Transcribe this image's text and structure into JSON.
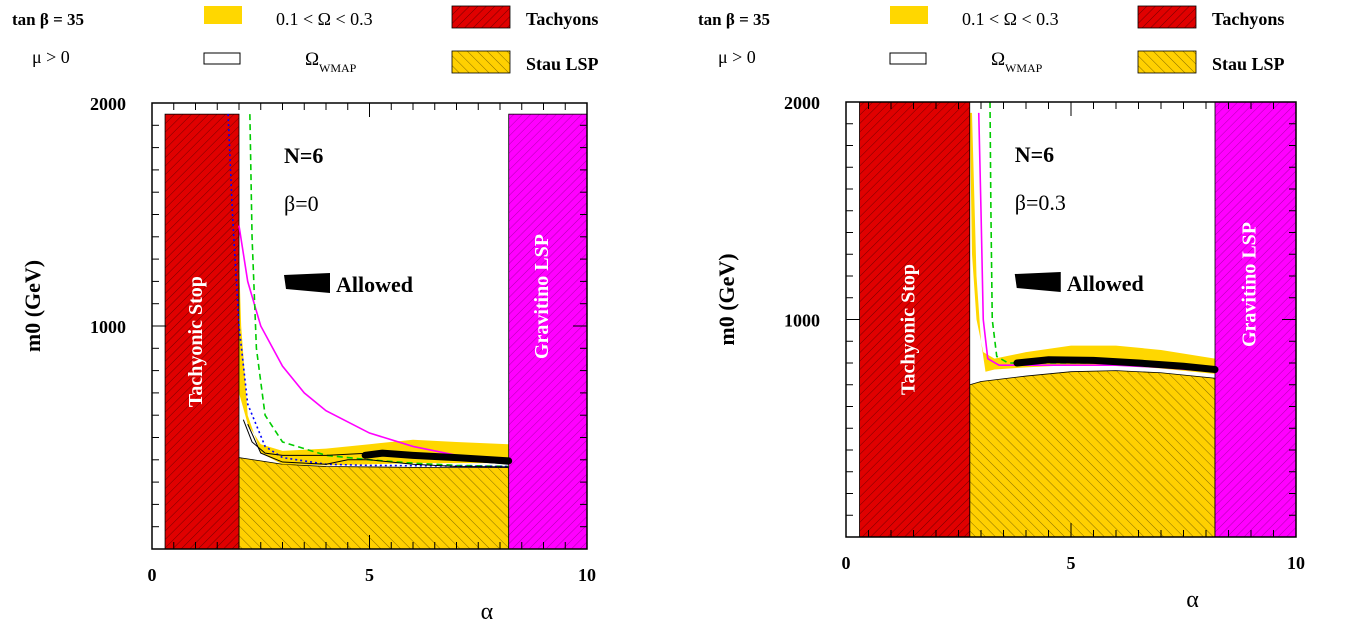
{
  "chart_data": [
    {
      "type": "area",
      "xlabel": "α",
      "ylabel": "m0 (GeV)",
      "xlim": [
        0,
        10
      ],
      "ylim": [
        0,
        2000
      ],
      "xticks": [
        "0",
        "5",
        "10"
      ],
      "yticks": [
        "1000",
        "2000"
      ],
      "legend": {
        "left_col": [
          "tan β = 35",
          "μ > 0"
        ],
        "entries": [
          {
            "label": "0.1 < Ω < 0.3",
            "color": "#FFD700",
            "kind": "fill"
          },
          {
            "label": "Ω",
            "sub": "WMAP",
            "color": "#FFFFFF",
            "kind": "outline"
          },
          {
            "label": "Tachyons",
            "color": "#E00000",
            "kind": "hatch"
          },
          {
            "label": "Stau LSP",
            "color": "#FFD700",
            "kind": "hatch"
          }
        ]
      },
      "annotations": {
        "n": "N=6",
        "beta": "β=0",
        "allowed": "Allowed"
      },
      "regions": {
        "tachyonic": {
          "label": "Tachyonic Stop",
          "x": [
            0.3,
            2.0
          ],
          "y": [
            0,
            1950
          ]
        },
        "gravitino": {
          "label": "Gravitino LSP",
          "x": [
            8.2,
            10
          ],
          "y": [
            0,
            1950
          ]
        },
        "stau": {
          "x_from": 2.0,
          "x_to": 8.2,
          "boundary": [
            [
              2.0,
              410
            ],
            [
              2.5,
              395
            ],
            [
              3,
              380
            ],
            [
              4,
              370
            ],
            [
              5,
              368
            ],
            [
              6,
              366
            ],
            [
              7,
              365
            ],
            [
              8.2,
              365
            ]
          ]
        }
      },
      "series": [
        {
          "color": "#FFD700",
          "role": "band-upper",
          "points": [
            [
              1.8,
              1920
            ],
            [
              1.85,
              1400
            ],
            [
              1.9,
              1000
            ],
            [
              2.0,
              700
            ],
            [
              2.2,
              560
            ],
            [
              2.5,
              470
            ],
            [
              3,
              440
            ],
            [
              4,
              450
            ],
            [
              5,
              470
            ],
            [
              6,
              490
            ],
            [
              7,
              480
            ],
            [
              8.2,
              470
            ]
          ]
        },
        {
          "color": "#FFD700",
          "role": "band-lower",
          "points": [
            [
              1.9,
              1920
            ],
            [
              2.05,
              1000
            ],
            [
              2.2,
              600
            ],
            [
              2.5,
              430
            ],
            [
              3,
              380
            ],
            [
              4,
              375
            ],
            [
              5,
              380
            ],
            [
              6,
              385
            ],
            [
              7,
              385
            ],
            [
              8.2,
              385
            ]
          ]
        },
        {
          "color": "#FF00FF",
          "role": "curve",
          "points": [
            [
              2.0,
              1450
            ],
            [
              2.2,
              1200
            ],
            [
              2.5,
              1000
            ],
            [
              3,
              820
            ],
            [
              3.5,
              700
            ],
            [
              4,
              620
            ],
            [
              5,
              520
            ],
            [
              6,
              460
            ],
            [
              7,
              420
            ],
            [
              8.2,
              390
            ]
          ]
        },
        {
          "color": "#00CC00",
          "role": "dashed",
          "points": [
            [
              2.25,
              1950
            ],
            [
              2.3,
              1400
            ],
            [
              2.4,
              900
            ],
            [
              2.6,
              600
            ],
            [
              3,
              480
            ],
            [
              4,
              420
            ],
            [
              5,
              400
            ],
            [
              6,
              385
            ],
            [
              7,
              375
            ],
            [
              8.2,
              370
            ]
          ]
        },
        {
          "color": "#0000FF",
          "role": "dotted",
          "points": [
            [
              1.75,
              1950
            ],
            [
              1.85,
              1500
            ],
            [
              2.0,
              1000
            ],
            [
              2.2,
              650
            ],
            [
              2.6,
              460
            ],
            [
              3,
              410
            ],
            [
              4,
              380
            ],
            [
              5,
              375
            ],
            [
              8.2,
              370
            ]
          ]
        },
        {
          "color": "#000000",
          "role": "wmap-upper",
          "points": [
            [
              2.1,
              580
            ],
            [
              2.3,
              480
            ],
            [
              2.6,
              430
            ],
            [
              3,
              420
            ],
            [
              4,
              420
            ],
            [
              5,
              430
            ],
            [
              6,
              420
            ],
            [
              7,
              400
            ],
            [
              8.2,
              380
            ]
          ]
        },
        {
          "color": "#000000",
          "role": "wmap-lower",
          "points": [
            [
              2.2,
              560
            ],
            [
              2.5,
              430
            ],
            [
              3,
              390
            ],
            [
              4,
              380
            ],
            [
              4.5,
              400
            ],
            [
              5,
              400
            ],
            [
              6,
              380
            ],
            [
              7,
              370
            ],
            [
              8.2,
              368
            ]
          ]
        },
        {
          "color": "#000000",
          "role": "allowed",
          "points": [
            [
              4.9,
              420
            ],
            [
              5.3,
              430
            ],
            [
              6,
              420
            ],
            [
              7,
              410
            ],
            [
              8.2,
              395
            ]
          ]
        }
      ]
    },
    {
      "type": "area",
      "xlabel": "α",
      "ylabel": "m0 (GeV)",
      "xlim": [
        0,
        10
      ],
      "ylim": [
        0,
        2000
      ],
      "xticks": [
        "0",
        "5",
        "10"
      ],
      "yticks": [
        "1000",
        "2000"
      ],
      "legend": {
        "left_col": [
          "tan β = 35",
          "μ > 0"
        ],
        "entries": [
          {
            "label": "0.1 < Ω < 0.3",
            "color": "#FFD700",
            "kind": "fill"
          },
          {
            "label": "Ω",
            "sub": "WMAP",
            "color": "#FFFFFF",
            "kind": "outline"
          },
          {
            "label": "Tachyons",
            "color": "#E00000",
            "kind": "hatch"
          },
          {
            "label": "Stau LSP",
            "color": "#FFD700",
            "kind": "hatch"
          }
        ]
      },
      "annotations": {
        "n": "N=6",
        "beta": "β=0.3",
        "allowed": "Allowed"
      },
      "regions": {
        "tachyonic": {
          "label": "Tachyonic Stop",
          "x": [
            0.3,
            2.75
          ],
          "y": [
            0,
            2000
          ]
        },
        "gravitino": {
          "label": "Gravitino LSP",
          "x": [
            8.2,
            10
          ],
          "y": [
            0,
            2000
          ]
        },
        "stau": {
          "x_from": 2.75,
          "x_to": 8.2,
          "boundary": [
            [
              2.75,
              700
            ],
            [
              3,
              715
            ],
            [
              4,
              740
            ],
            [
              5,
              760
            ],
            [
              6,
              765
            ],
            [
              7,
              755
            ],
            [
              8.2,
              730
            ]
          ]
        }
      },
      "series": [
        {
          "color": "#FFD700",
          "role": "band-upper",
          "points": [
            [
              2.75,
              1950
            ],
            [
              2.8,
              1300
            ],
            [
              2.9,
              1000
            ],
            [
              3.05,
              850
            ],
            [
              3.3,
              820
            ],
            [
              4,
              850
            ],
            [
              5,
              880
            ],
            [
              6,
              880
            ],
            [
              7,
              860
            ],
            [
              8.2,
              820
            ]
          ]
        },
        {
          "color": "#FFD700",
          "role": "band-lower",
          "points": [
            [
              2.8,
              1950
            ],
            [
              2.9,
              1200
            ],
            [
              3.0,
              900
            ],
            [
              3.1,
              760
            ],
            [
              3.3,
              770
            ],
            [
              4,
              780
            ],
            [
              5,
              790
            ],
            [
              6,
              790
            ],
            [
              7,
              775
            ],
            [
              8.2,
              750
            ]
          ]
        },
        {
          "color": "#FF00FF",
          "role": "curve",
          "points": [
            [
              2.95,
              1950
            ],
            [
              3.0,
              1500
            ],
            [
              3.05,
              1000
            ],
            [
              3.15,
              820
            ],
            [
              3.4,
              790
            ],
            [
              4,
              790
            ],
            [
              5,
              790
            ],
            [
              6,
              790
            ],
            [
              7,
              780
            ],
            [
              8.2,
              760
            ]
          ]
        },
        {
          "color": "#00CC00",
          "role": "dashed",
          "points": [
            [
              3.2,
              2000
            ],
            [
              3.22,
              1500
            ],
            [
              3.25,
              1000
            ],
            [
              3.35,
              830
            ],
            [
              3.6,
              800
            ],
            [
              4,
              800
            ],
            [
              5,
              800
            ],
            [
              6,
              800
            ],
            [
              7,
              790
            ],
            [
              8.2,
              770
            ]
          ]
        },
        {
          "color": "#000000",
          "role": "allowed",
          "points": [
            [
              3.8,
              800
            ],
            [
              4.5,
              815
            ],
            [
              5.5,
              812
            ],
            [
              6.5,
              800
            ],
            [
              7.5,
              785
            ],
            [
              8.2,
              770
            ]
          ]
        }
      ]
    }
  ]
}
